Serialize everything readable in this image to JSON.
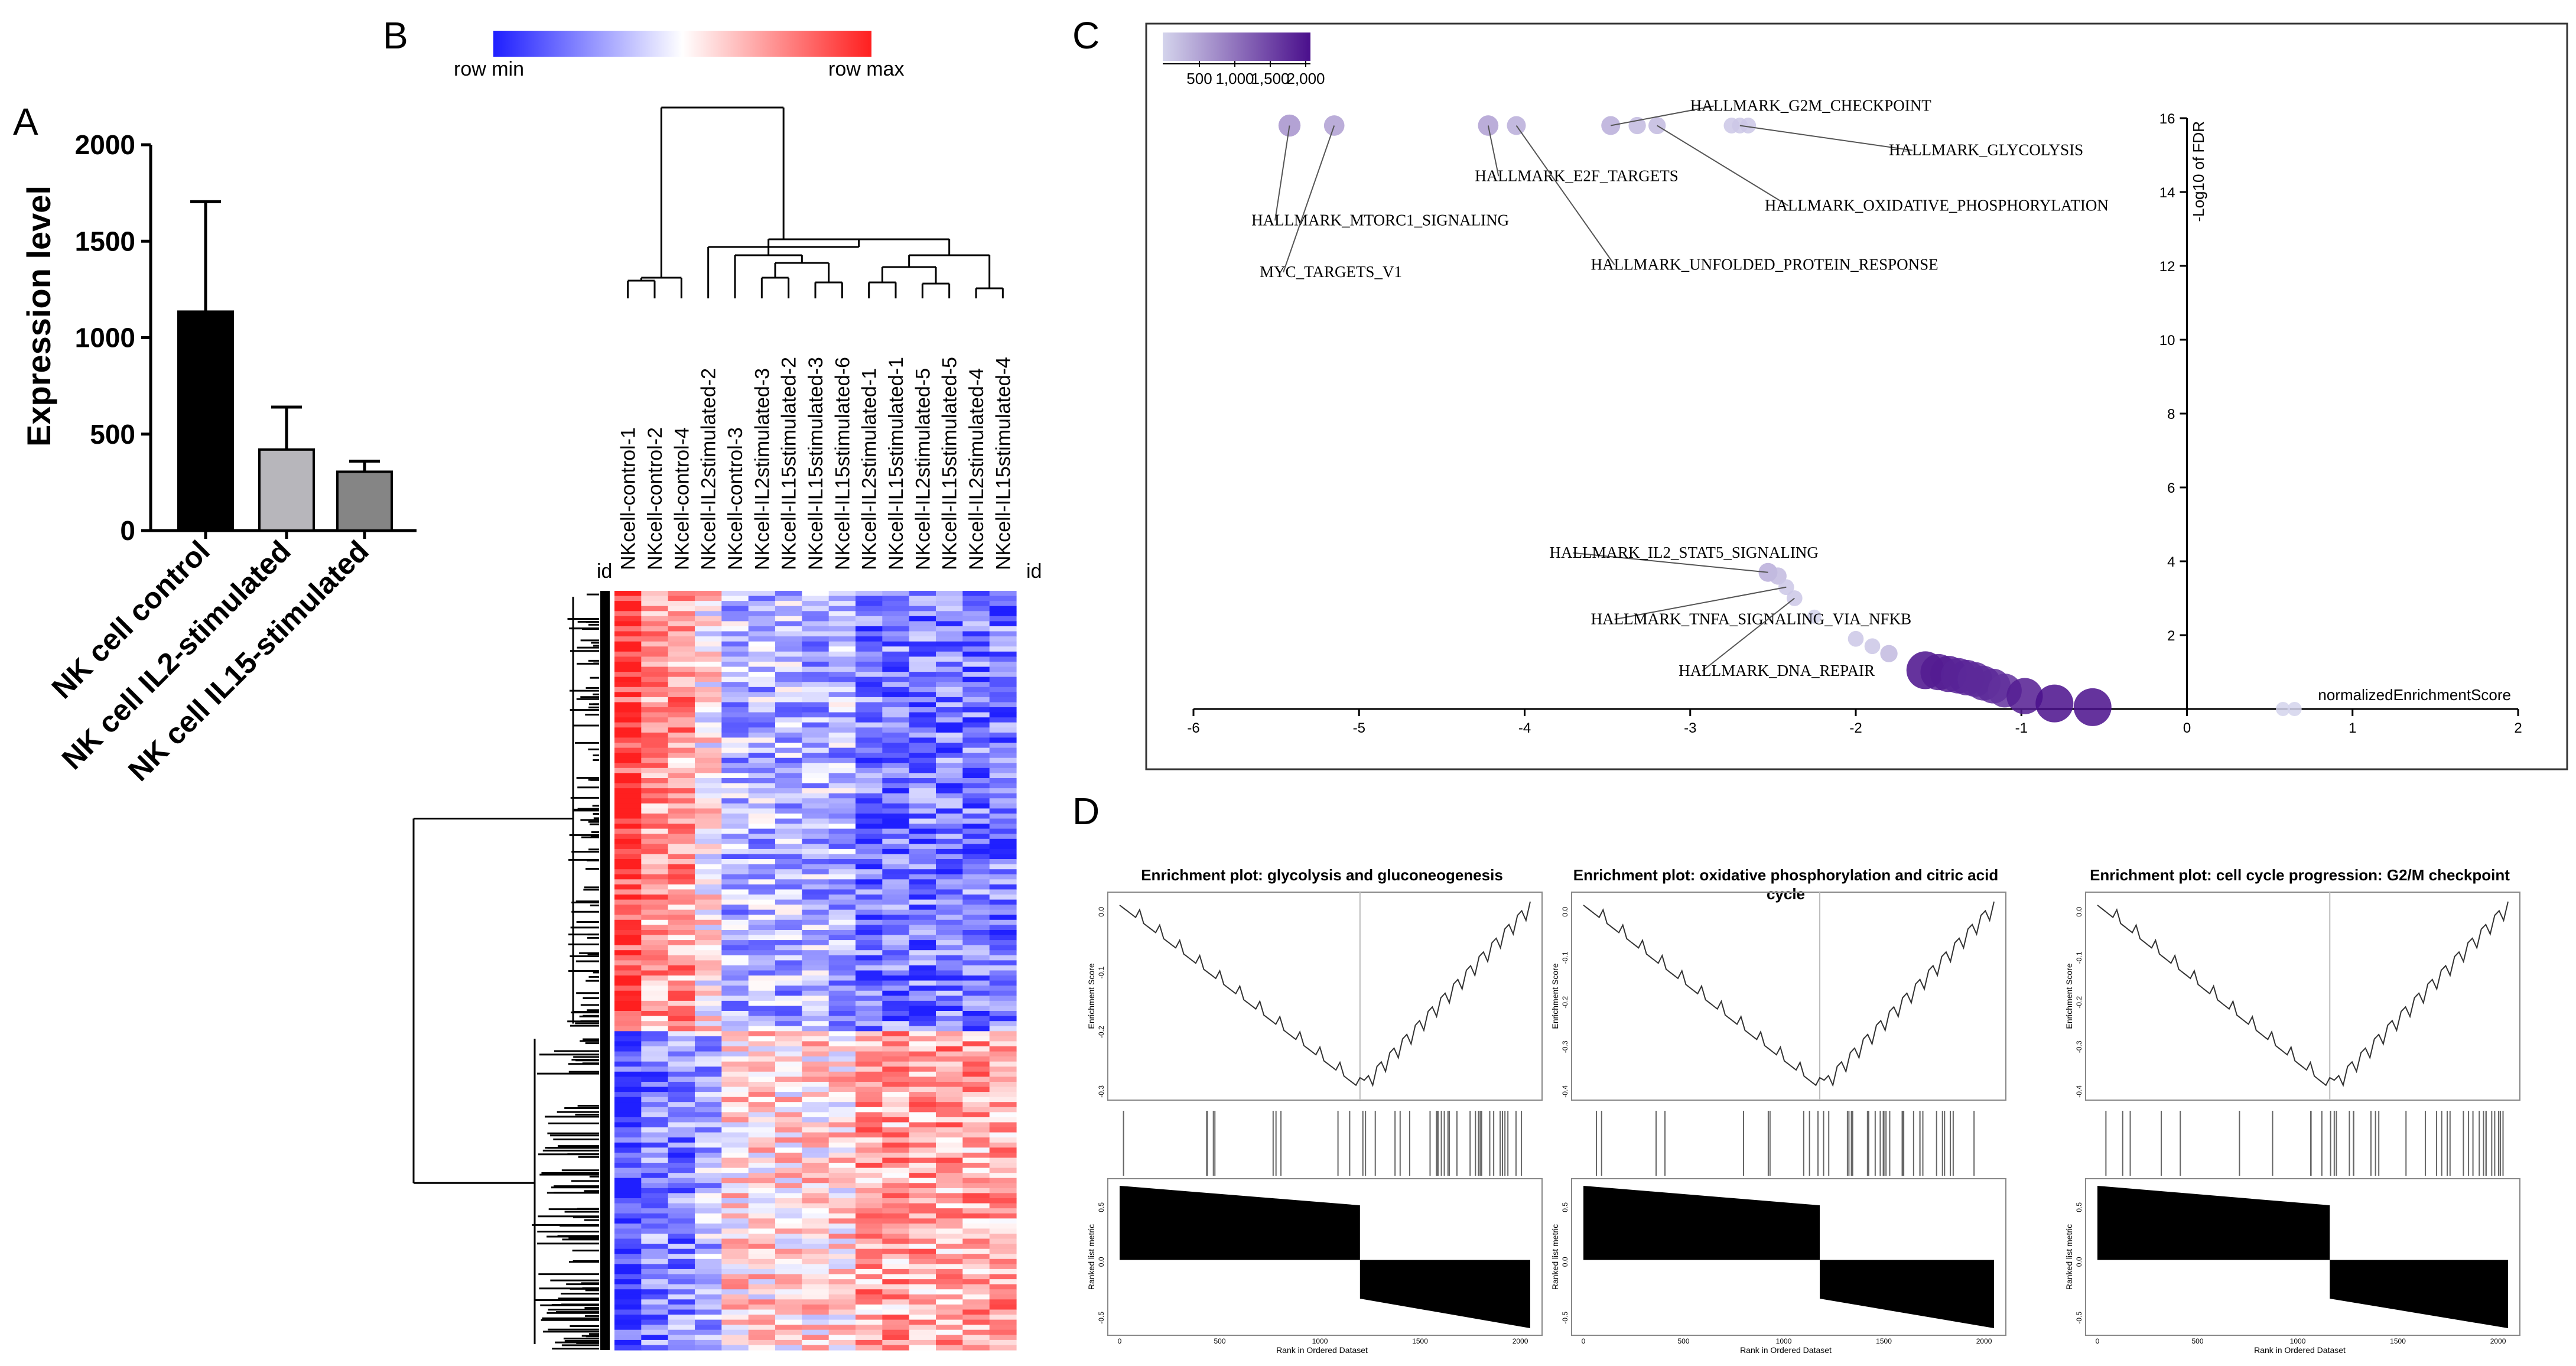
{
  "panels": {
    "a": "A",
    "b": "B",
    "c": "C",
    "d": "D"
  },
  "chart_data": [
    {
      "type": "bar",
      "panel": "A",
      "ylabel": "Expression level",
      "ylim": [
        0,
        2000
      ],
      "yticks": [
        "0",
        "500",
        "1000",
        "1500",
        "2000"
      ],
      "categories": [
        "NK cell control",
        "NK cell IL2-stimulated",
        "NK cell IL15-stimulated"
      ],
      "values": [
        1135,
        420,
        305
      ],
      "errors": [
        570,
        220,
        55
      ],
      "colors": [
        "#000000",
        "#b7b6bb",
        "#858585"
      ]
    },
    {
      "type": "heatmap",
      "panel": "B",
      "legend_min": "row  min",
      "legend_max": "row  max",
      "id_label": "id",
      "columns": [
        "NKcell-control-1",
        "NKcell-control-2",
        "NKcell-control-4",
        "NKcell-IL2stimulated-2",
        "NKcell-control-3",
        "NKcell-IL2stimulated-3",
        "NKcell-IL15stimulated-2",
        "NKcell-IL15stimulated-3",
        "NKcell-IL15stimulated-6",
        "NKcell-IL2stimulated-1",
        "NKcell-IL15stimulated-1",
        "NKcell-IL2stimulated-5",
        "NKcell-IL15stimulated-5",
        "NKcell-IL2stimulated-4",
        "NKcell-IL15stimulated-4"
      ],
      "colors": {
        "min": "#1f1fff",
        "mid": "#ffffff",
        "max": "#ff1f1f"
      }
    },
    {
      "type": "scatter",
      "panel": "C",
      "xlabel": "normalizedEnrichmentScore",
      "ylabel": "-Log10 of FDR",
      "xlim": [
        -6,
        2
      ],
      "ylim": [
        0,
        16
      ],
      "xticks": [
        "-6",
        "-5",
        "-4",
        "-3",
        "-2",
        "-1",
        "0",
        "1",
        "2"
      ],
      "yticks": [
        "2",
        "4",
        "6",
        "8",
        "10",
        "12",
        "14",
        "16"
      ],
      "size_legend": [
        "500",
        "1,000",
        "1,500",
        "2,000"
      ],
      "point_color_low": "#d4d4ec",
      "point_color_high": "#4a0f8c",
      "points": [
        {
          "x": -5.42,
          "y": 15.8,
          "s": 1000
        },
        {
          "x": -5.15,
          "y": 15.8,
          "s": 900
        },
        {
          "x": -4.22,
          "y": 15.8,
          "s": 900
        },
        {
          "x": -4.05,
          "y": 15.8,
          "s": 800
        },
        {
          "x": -3.48,
          "y": 15.8,
          "s": 800
        },
        {
          "x": -3.32,
          "y": 15.8,
          "s": 700
        },
        {
          "x": -3.2,
          "y": 15.8,
          "s": 700
        },
        {
          "x": -2.75,
          "y": 15.8,
          "s": 600
        },
        {
          "x": -2.7,
          "y": 15.8,
          "s": 600
        },
        {
          "x": -2.65,
          "y": 15.8,
          "s": 600
        },
        {
          "x": -2.53,
          "y": 3.7,
          "s": 800
        },
        {
          "x": -2.47,
          "y": 3.6,
          "s": 700
        },
        {
          "x": -2.42,
          "y": 3.3,
          "s": 600
        },
        {
          "x": -2.37,
          "y": 3.0,
          "s": 600
        },
        {
          "x": -2.25,
          "y": 2.5,
          "s": 500
        },
        {
          "x": -2.0,
          "y": 1.9,
          "s": 600
        },
        {
          "x": -1.9,
          "y": 1.7,
          "s": 600
        },
        {
          "x": -1.8,
          "y": 1.5,
          "s": 700
        },
        {
          "x": -1.58,
          "y": 1.05,
          "s": 2000
        },
        {
          "x": -1.5,
          "y": 1.0,
          "s": 1900
        },
        {
          "x": -1.44,
          "y": 0.95,
          "s": 1900
        },
        {
          "x": -1.38,
          "y": 0.9,
          "s": 1850
        },
        {
          "x": -1.33,
          "y": 0.85,
          "s": 1850
        },
        {
          "x": -1.28,
          "y": 0.8,
          "s": 1800
        },
        {
          "x": -1.23,
          "y": 0.7,
          "s": 1800
        },
        {
          "x": -1.17,
          "y": 0.62,
          "s": 1800
        },
        {
          "x": -1.1,
          "y": 0.5,
          "s": 1750
        },
        {
          "x": -0.98,
          "y": 0.35,
          "s": 1900
        },
        {
          "x": -0.8,
          "y": 0.15,
          "s": 2000
        },
        {
          "x": -0.57,
          "y": 0.05,
          "s": 2000
        },
        {
          "x": 0.58,
          "y": 0.0,
          "s": 500
        },
        {
          "x": 0.65,
          "y": 0.0,
          "s": 500
        }
      ],
      "annotations": [
        {
          "text": "HALLMARK_G2M_CHECKPOINT",
          "tx": -3.0,
          "ty": 16.2,
          "px": -3.48,
          "py": 15.8
        },
        {
          "text": "HALLMARK_GLYCOLYSIS",
          "tx": -1.8,
          "ty": 15.0,
          "px": -2.7,
          "py": 15.8
        },
        {
          "text": "HALLMARK_MTORC1_SIGNALING",
          "tx": -5.65,
          "ty": 13.1,
          "px": -5.42,
          "py": 15.8
        },
        {
          "text": "HALLMARK_E2F_TARGETS",
          "tx": -4.3,
          "ty": 14.3,
          "px": -4.22,
          "py": 15.8
        },
        {
          "text": "HALLMARK_OXIDATIVE_PHOSPHORYLATION",
          "tx": -2.55,
          "ty": 13.5,
          "px": -3.2,
          "py": 15.8
        },
        {
          "text": "MYC_TARGETS_V1",
          "tx": -5.6,
          "ty": 11.7,
          "px": -5.15,
          "py": 15.8
        },
        {
          "text": "HALLMARK_UNFOLDED_PROTEIN_RESPONSE",
          "tx": -3.6,
          "ty": 11.9,
          "px": -4.05,
          "py": 15.8
        },
        {
          "text": "HALLMARK_IL2_STAT5_SIGNALING",
          "tx": -3.85,
          "ty": 4.1,
          "px": -2.53,
          "py": 3.7
        },
        {
          "text": "HALLMARK_TNFA_SIGNALING_VIA_NFKB",
          "tx": -3.6,
          "ty": 2.3,
          "px": -2.42,
          "py": 3.3
        },
        {
          "text": "HALLMARK_DNA_REPAIR",
          "tx": -3.07,
          "ty": 0.9,
          "px": -2.37,
          "py": 3.0
        }
      ]
    },
    {
      "type": "line",
      "panel": "D",
      "plots": [
        {
          "title": "Enrichment plot: glycolysis and gluconeogenesis",
          "ylabel": "Enrichment Score",
          "ylabel2": "Ranked list metric",
          "xlabel": "Rank in Ordered Dataset",
          "yticks": [
            "0.0",
            "-0.1",
            "-0.2",
            "-0.3"
          ],
          "yticks2": [
            "0.5",
            "0.0",
            "-0.5"
          ],
          "xticks": [
            "0",
            "500",
            "1000",
            "1500",
            "2000"
          ],
          "min_rank": 1200,
          "min_es": -0.36
        },
        {
          "title": "Enrichment plot: oxidative phosphorylation and citric acid cycle",
          "ylabel": "Enrichment Score",
          "ylabel2": "Ranked list metric",
          "xlabel": "Rank in Ordered Dataset",
          "yticks": [
            "0.0",
            "-0.1",
            "-0.2",
            "-0.3",
            "-0.4"
          ],
          "yticks2": [
            "0.5",
            "0.0",
            "-0.5"
          ],
          "xticks": [
            "0",
            "500",
            "1000",
            "1500",
            "2000"
          ],
          "min_rank": 1180,
          "min_es": -0.47
        },
        {
          "title": "Enrichment plot: cell cycle progression: G2/M checkpoint",
          "ylabel": "Enrichment Score",
          "ylabel2": "Ranked list metric",
          "xlabel": "Rank in Ordered Dataset",
          "yticks": [
            "0.0",
            "-0.1",
            "-0.2",
            "-0.3",
            "-0.4"
          ],
          "yticks2": [
            "0.5",
            "0.0",
            "-0.5"
          ],
          "xticks": [
            "0",
            "500",
            "1000",
            "1500",
            "2000"
          ],
          "min_rank": 1160,
          "min_es": -0.43
        }
      ]
    }
  ]
}
